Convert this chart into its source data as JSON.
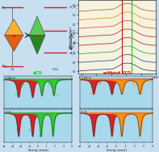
{
  "bg_color": "#c8dff0",
  "panel_bg_tl": "#dce8f5",
  "panel_bg_tr": "#f5f2e0",
  "panel_bg_bott": "#a8d8ec",
  "level_color": "#cc2222",
  "oh_color1": "#f5a020",
  "oh_color2": "#e07010",
  "dist_color1": "#44bb44",
  "dist_color2": "#229922",
  "spectra_colors": [
    "#bb5500",
    "#dd8800",
    "#dd4422",
    "#cc1111",
    "#aa1133",
    "#229944",
    "#114488",
    "#223366"
  ],
  "vert_line_green": "#00cc00",
  "vert_line_red": "#cc0000",
  "sco_label": "sCO",
  "sco_color": "#00cc00",
  "without_sco_label": "without SCO",
  "without_sco_color": "#cc0000",
  "moss_bg": "#a8d8ec",
  "peak_red": "#dd1111",
  "peak_green": "#22cc22",
  "peak_orange": "#ff8800",
  "peak_dark_red": "#cc2200"
}
